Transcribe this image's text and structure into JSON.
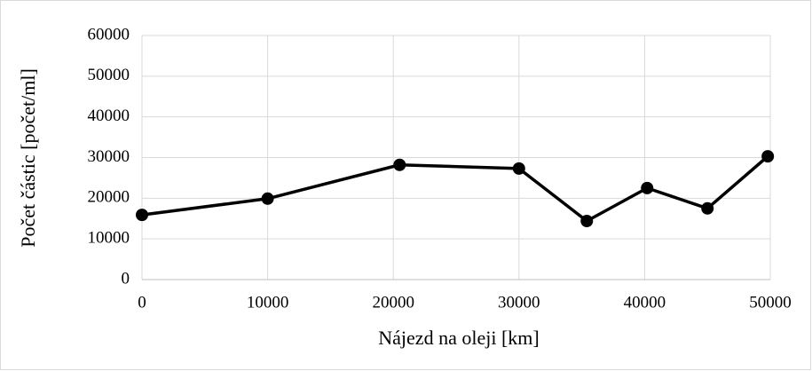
{
  "chart_data": {
    "type": "line",
    "x_label": "Nájezd na oleji [km]",
    "y_label": "Počet částic [počet/ml]",
    "x": [
      0,
      10000,
      20500,
      30000,
      35400,
      40200,
      45000,
      49800
    ],
    "series": [
      {
        "color": "#000000",
        "values": [
          15900,
          19900,
          28200,
          27300,
          14400,
          22500,
          17500,
          30300
        ]
      }
    ],
    "xlim": [
      0,
      50000
    ],
    "xticks": [
      0,
      10000,
      20000,
      30000,
      40000,
      50000
    ],
    "ylim": [
      0,
      60000
    ],
    "yticks": [
      0,
      10000,
      20000,
      30000,
      40000,
      50000,
      60000
    ],
    "grid": true
  }
}
